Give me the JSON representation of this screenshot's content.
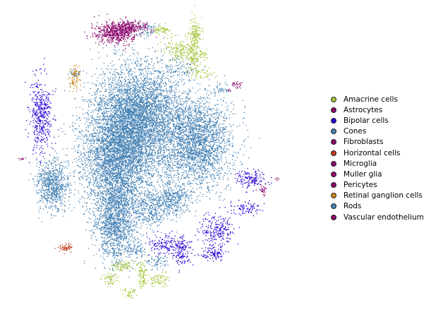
{
  "chart_data": {
    "type": "scatter",
    "title": "",
    "xlabel": "",
    "ylabel": "",
    "axes_visible": false,
    "grid": false,
    "legend_position": "right",
    "xlim": [
      -60,
      60
    ],
    "ylim": [
      -50,
      50
    ],
    "series": [
      {
        "name": "Amacrine cells",
        "color": "#a4c639",
        "clusters": [
          {
            "cx": 14,
            "cy": 44,
            "sx": 1.4,
            "sy": 2.6,
            "n": 140
          },
          {
            "cx": 8,
            "cy": 38,
            "sx": 3.8,
            "sy": 2.2,
            "n": 170
          },
          {
            "cx": 13,
            "cy": 36,
            "sx": 1.6,
            "sy": 2.4,
            "n": 120
          },
          {
            "cx": 16,
            "cy": 30,
            "sx": 2.6,
            "sy": 1.0,
            "n": 60
          },
          {
            "cx": 0,
            "cy": 45,
            "sx": 2.0,
            "sy": 0.9,
            "n": 60
          },
          {
            "cx": 17,
            "cy": 36,
            "sx": 1.2,
            "sy": 1.0,
            "n": 30
          },
          {
            "cx": -16,
            "cy": -37,
            "sx": 2.3,
            "sy": 1.1,
            "n": 80
          },
          {
            "cx": -21,
            "cy": -42,
            "sx": 1.6,
            "sy": 1.2,
            "n": 60
          },
          {
            "cx": -8,
            "cy": -41,
            "sx": 0.9,
            "sy": 2.4,
            "n": 90
          },
          {
            "cx": -2,
            "cy": -42,
            "sx": 2.4,
            "sy": 1.4,
            "n": 80
          },
          {
            "cx": -13,
            "cy": -47,
            "sx": 1.6,
            "sy": 1.0,
            "n": 40
          }
        ]
      },
      {
        "name": "Astrocytes",
        "color": "#8b0a6e",
        "clusters": [
          {
            "cx": -15,
            "cy": 48,
            "sx": 0.8,
            "sy": 0.4,
            "n": 8
          }
        ]
      },
      {
        "name": "Bipolar cells",
        "color": "#2a00d8",
        "clusters": [
          {
            "cx": -50,
            "cy": 15,
            "sx": 2.3,
            "sy": 6.5,
            "n": 450
          },
          {
            "cx": 37,
            "cy": -7,
            "sx": 3.3,
            "sy": 1.5,
            "n": 150
          },
          {
            "cx": 34,
            "cy": -17,
            "sx": 3.4,
            "sy": 1.1,
            "n": 90
          },
          {
            "cx": 23,
            "cy": -25,
            "sx": 3.4,
            "sy": 2.6,
            "n": 220
          },
          {
            "cx": 2,
            "cy": -30,
            "sx": 3.6,
            "sy": 1.8,
            "n": 160
          },
          {
            "cx": 8,
            "cy": -33,
            "sx": 1.6,
            "sy": 2.6,
            "n": 130
          },
          {
            "cx": 21,
            "cy": -33,
            "sx": 2.6,
            "sy": 1.3,
            "n": 110
          }
        ]
      },
      {
        "name": "Cones",
        "color": "#4682b4",
        "clusters": [
          {
            "cx": -45,
            "cy": -9,
            "sx": 3.4,
            "sy": 4.2,
            "n": 80
          }
        ]
      },
      {
        "name": "Fibroblasts",
        "color": "#8b0a6e",
        "clusters": [
          {
            "cx": 42,
            "cy": -11,
            "sx": 1.1,
            "sy": 1.0,
            "n": 30
          }
        ]
      },
      {
        "name": "Horizontal cells",
        "color": "#c0391b",
        "clusters": [
          {
            "cx": -40,
            "cy": -31,
            "sx": 1.6,
            "sy": 0.7,
            "n": 60
          }
        ]
      },
      {
        "name": "Microglia",
        "color": "#8b0a6e",
        "clusters": [
          {
            "cx": -58,
            "cy": 0,
            "sx": 0.6,
            "sy": 0.3,
            "n": 10
          },
          {
            "cx": 48,
            "cy": -7,
            "sx": 0.4,
            "sy": 0.4,
            "n": 6
          }
        ]
      },
      {
        "name": "Muller glia",
        "color": "#8b0a6e",
        "clusters": [
          {
            "cx": -19,
            "cy": 44,
            "sx": 4.6,
            "sy": 1.9,
            "n": 600
          },
          {
            "cx": -12,
            "cy": 46,
            "sx": 3.4,
            "sy": 0.9,
            "n": 180
          }
        ]
      },
      {
        "name": "Pericytes",
        "color": "#8b0a6e",
        "clusters": [
          {
            "cx": 31,
            "cy": 26,
            "sx": 1.3,
            "sy": 0.5,
            "n": 30
          }
        ]
      },
      {
        "name": "Retinal ganglion cells",
        "color": "#c8861f",
        "clusters": [
          {
            "cx": -36,
            "cy": 28,
            "sx": 1.1,
            "sy": 2.0,
            "n": 90
          }
        ]
      },
      {
        "name": "Rods",
        "color": "#4682b4",
        "clusters": [
          {
            "cx": -10,
            "cy": 15,
            "sx": 8.8,
            "sy": 9.0,
            "n": 4200
          },
          {
            "cx": -18,
            "cy": 0,
            "sx": 7.6,
            "sy": 8.6,
            "n": 3200
          },
          {
            "cx": 14,
            "cy": 6,
            "sx": 7.6,
            "sy": 8.0,
            "n": 2600
          },
          {
            "cx": -19,
            "cy": -22,
            "sx": 4.4,
            "sy": 7.0,
            "n": 1500
          },
          {
            "cx": 4,
            "cy": -14,
            "sx": 4.2,
            "sy": 3.2,
            "n": 420
          },
          {
            "cx": -5,
            "cy": -18,
            "sx": 3.6,
            "sy": 3.0,
            "n": 300
          },
          {
            "cx": -45,
            "cy": -9,
            "sx": 3.4,
            "sy": 4.2,
            "n": 650
          },
          {
            "cx": 8,
            "cy": 32,
            "sx": 3.2,
            "sy": 1.8,
            "n": 80
          },
          {
            "cx": -6,
            "cy": 45,
            "sx": 1.8,
            "sy": 1.2,
            "n": 60
          },
          {
            "cx": 25,
            "cy": 24,
            "sx": 1.5,
            "sy": 0.8,
            "n": 30
          },
          {
            "cx": -36,
            "cy": 30,
            "sx": 1.2,
            "sy": 0.6,
            "n": 25
          },
          {
            "cx": -10,
            "cy": -32,
            "sx": 2.5,
            "sy": 1.0,
            "n": 50
          },
          {
            "cx": -2,
            "cy": -36,
            "sx": 2.6,
            "sy": 1.4,
            "n": 70
          }
        ]
      },
      {
        "name": "Vascular endothelium",
        "color": "#8b0a6e",
        "clusters": [
          {
            "cx": 28,
            "cy": 24,
            "sx": 0.4,
            "sy": 0.3,
            "n": 6
          }
        ]
      }
    ]
  }
}
